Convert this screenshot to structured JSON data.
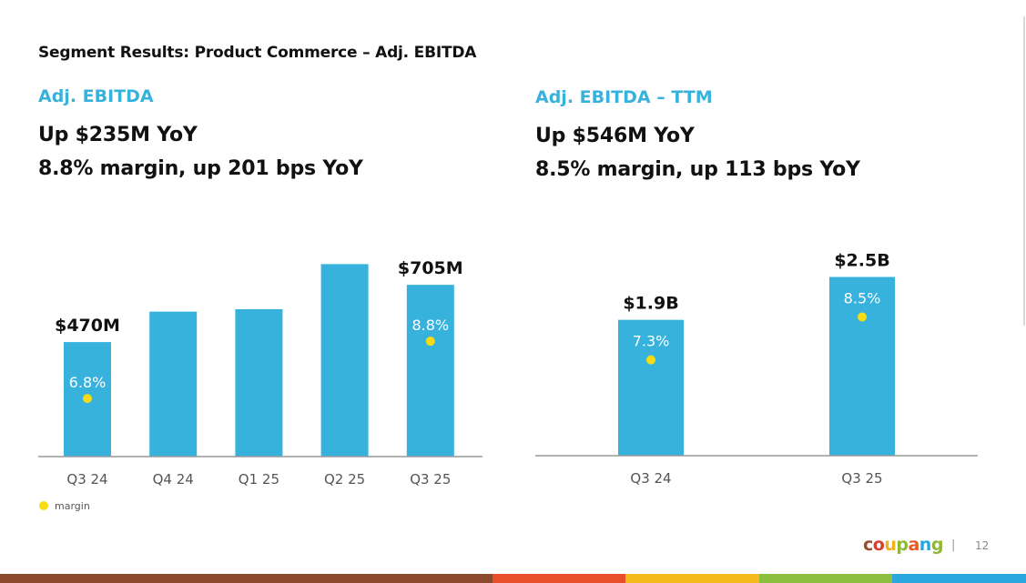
{
  "slide": {
    "title": "Segment Results: Product Commerce – Adj. EBITDA",
    "page_number": "12",
    "separator": "|"
  },
  "logo": {
    "text": "coupang",
    "letter_colors": [
      "#9b4a26",
      "#d93b30",
      "#f0b21b",
      "#8fb833",
      "#e85a26",
      "#26a6dc",
      "#8fb833"
    ]
  },
  "footer_stripe": [
    {
      "color": "#8b4a2b",
      "share": 0.48
    },
    {
      "color": "#e94e2b",
      "share": 0.13
    },
    {
      "color": "#f5b91a",
      "share": 0.13
    },
    {
      "color": "#8cbf3f",
      "share": 0.13
    },
    {
      "color": "#2aa7de",
      "share": 0.13
    }
  ],
  "colors": {
    "bar": "#36b2dc",
    "marker": "#f7dc15",
    "axis": "#999999",
    "heading": "#36b2dc"
  },
  "left_panel": {
    "heading": "Adj. EBITDA",
    "line1": "Up $235M YoY",
    "line2": "8.8% margin, up 201 bps YoY"
  },
  "right_panel": {
    "heading": "Adj. EBITDA – TTM",
    "line1": "Up $546M YoY",
    "line2": "8.5% margin, up 113 bps YoY"
  },
  "chart_data": [
    {
      "type": "bar",
      "categories": [
        "Q3 24",
        "Q4 24",
        "Q1 25",
        "Q2 25",
        "Q3 25"
      ],
      "series": [
        {
          "values": [
            470,
            595,
            605,
            790,
            705
          ],
          "value_labels": [
            "$470M",
            "",
            "",
            "",
            "$705M"
          ]
        },
        {
          "name": "margin",
          "type": "scatter",
          "values": [
            6.8,
            null,
            null,
            null,
            8.8
          ],
          "value_labels": [
            "6.8%",
            "",
            "",
            "",
            "8.8%"
          ]
        }
      ],
      "legend": {
        "entries": [
          "margin"
        ],
        "placement": "bottom-left"
      },
      "ylim": [
        0,
        840
      ],
      "grid": false
    },
    {
      "type": "bar",
      "categories": [
        "Q3 24",
        "Q3 25"
      ],
      "series": [
        {
          "values": [
            1.9,
            2.5
          ],
          "value_labels": [
            "$1.9B",
            "$2.5B"
          ]
        },
        {
          "type": "scatter",
          "values": [
            7.3,
            8.5
          ],
          "value_labels": [
            "7.3%",
            "8.5%"
          ]
        }
      ],
      "ylim": [
        0,
        2.85
      ],
      "grid": false
    }
  ]
}
